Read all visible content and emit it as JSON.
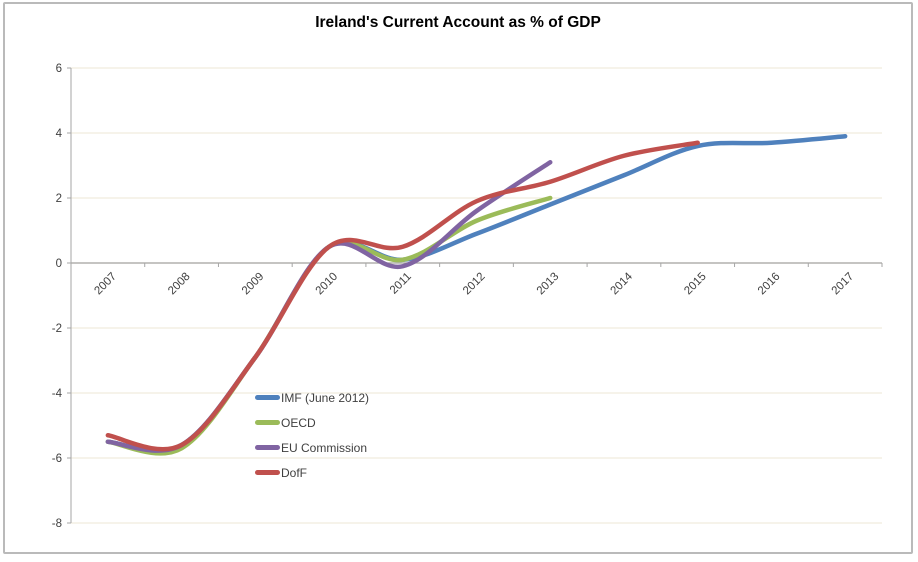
{
  "chart_data": {
    "type": "line",
    "title": "Ireland's Current Account as % of GDP",
    "categories": [
      "2007",
      "2008",
      "2009",
      "2010",
      "2011",
      "2012",
      "2013",
      "2014",
      "2015",
      "2016",
      "2017"
    ],
    "series": [
      {
        "name": "IMF (June 2012)",
        "color": "#4F81BD",
        "values": [
          -5.5,
          -5.6,
          -2.9,
          0.5,
          0.1,
          0.9,
          1.8,
          2.7,
          3.6,
          3.7,
          3.9
        ]
      },
      {
        "name": "OECD",
        "color": "#9BBB59",
        "values": [
          -5.5,
          -5.7,
          -2.9,
          0.5,
          0.1,
          1.3,
          2.0,
          null,
          null,
          null,
          null
        ]
      },
      {
        "name": "EU Commission",
        "color": "#8064A2",
        "values": [
          -5.5,
          -5.6,
          -2.9,
          0.5,
          -0.1,
          1.6,
          3.1,
          null,
          null,
          null,
          null
        ]
      },
      {
        "name": "DofF",
        "color": "#C0504D",
        "values": [
          -5.3,
          -5.6,
          -2.9,
          0.5,
          0.5,
          1.9,
          2.5,
          3.3,
          3.7,
          null,
          null
        ]
      }
    ],
    "ylim": [
      -8,
      6
    ],
    "yticks": [
      6,
      4,
      2,
      0,
      -2,
      -4,
      -6,
      -8
    ],
    "grid": "horizontal-only",
    "legend_position": "inside-left-lower",
    "line_style": "smooth",
    "colors": {
      "gridline": "#f3efe3",
      "axis": "#a6a6a6",
      "tick_label": "#3f3f3f",
      "title": "#000000",
      "frame_border": "#bababa",
      "background": "#ffffff"
    }
  }
}
